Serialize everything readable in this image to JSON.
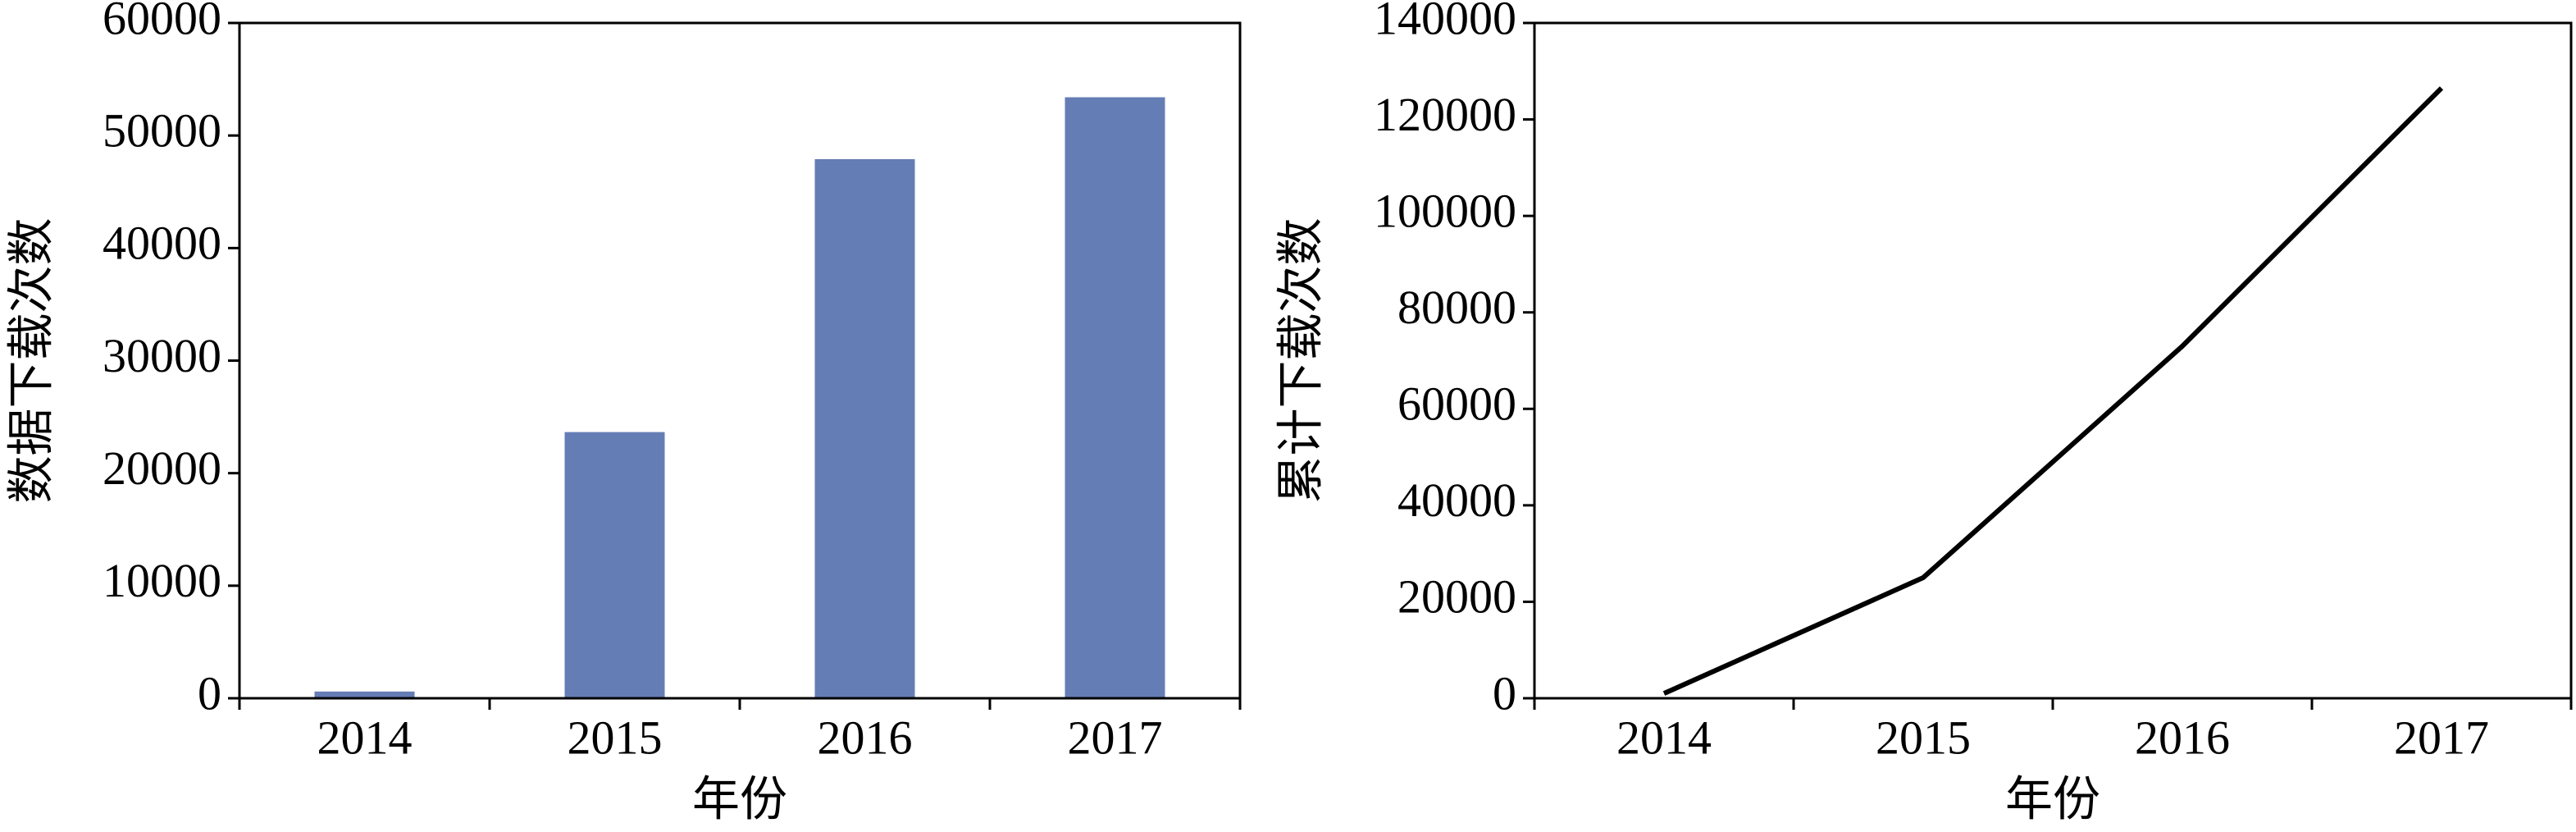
{
  "chart_data": [
    {
      "type": "bar",
      "x_label": "年份",
      "y_label": "数据下载次数",
      "categories": [
        "2014",
        "2015",
        "2016",
        "2017"
      ],
      "values": [
        600,
        23650,
        47900,
        53400
      ],
      "color": "#657db5",
      "ylim": [
        0,
        60000
      ],
      "yticks": [
        0,
        10000,
        20000,
        30000,
        40000,
        50000,
        60000
      ]
    },
    {
      "type": "line",
      "x_label": "年份",
      "y_label": "累计下载次数",
      "categories": [
        "2014",
        "2015",
        "2016",
        "2017"
      ],
      "values": [
        1000,
        25000,
        73000,
        126500
      ],
      "color": "#000000",
      "ylim": [
        0,
        140000
      ],
      "yticks": [
        0,
        20000,
        40000,
        60000,
        80000,
        100000,
        120000,
        140000
      ]
    }
  ]
}
